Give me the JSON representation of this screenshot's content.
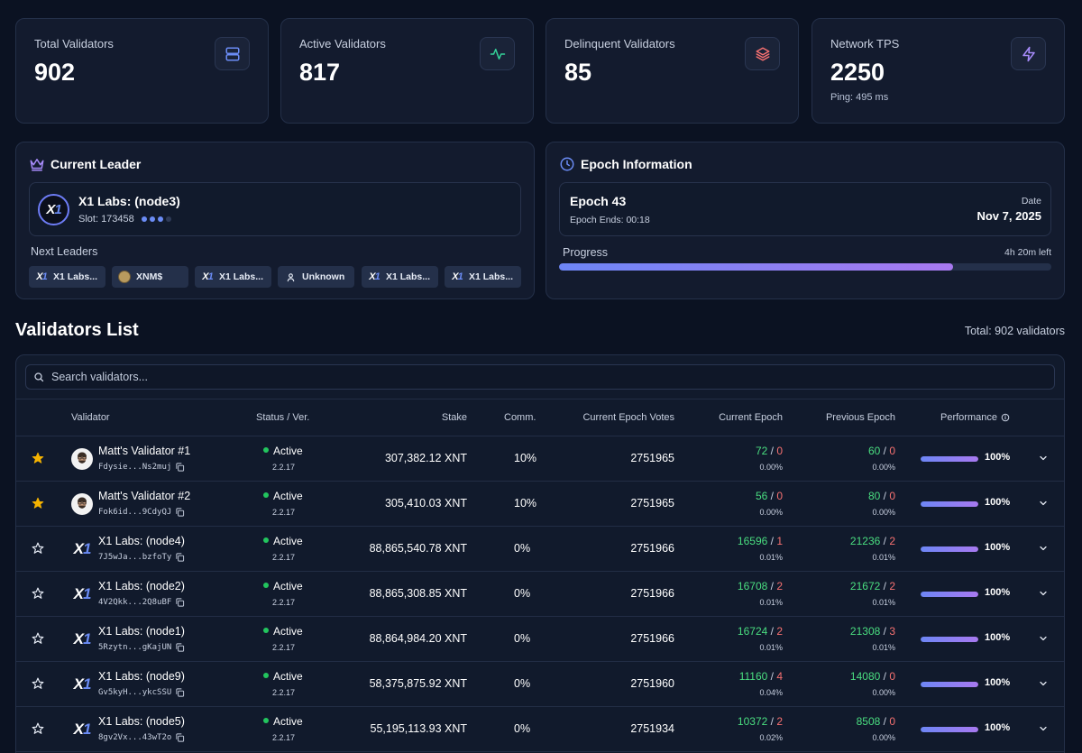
{
  "stats": [
    {
      "label": "Total Validators",
      "value": "902",
      "sub": "",
      "icon": "server-icon",
      "color": "#6b8cf5"
    },
    {
      "label": "Active Validators",
      "value": "817",
      "sub": "",
      "icon": "activity-icon",
      "color": "#34d399"
    },
    {
      "label": "Delinquent Validators",
      "value": "85",
      "sub": "",
      "icon": "layers-icon",
      "color": "#f87171"
    },
    {
      "label": "Network TPS",
      "value": "2250",
      "sub": "Ping: 495 ms",
      "icon": "zap-icon",
      "color": "#a78bfa"
    }
  ],
  "leader": {
    "title": "Current Leader",
    "name": "X1 Labs: (node3)",
    "slot": "Slot: 173458",
    "next_label": "Next Leaders",
    "next": [
      {
        "label": "X1 Labs...",
        "icon": "x1-logo-icon"
      },
      {
        "label": "XNM$",
        "icon": "avatar-icon"
      },
      {
        "label": "X1 Labs...",
        "icon": "x1-logo-icon"
      },
      {
        "label": "Unknown",
        "icon": "user-icon"
      },
      {
        "label": "X1 Labs...",
        "icon": "x1-logo-icon"
      },
      {
        "label": "X1 Labs...",
        "icon": "x1-logo-icon"
      }
    ]
  },
  "epoch": {
    "title": "Epoch Information",
    "name": "Epoch 43",
    "ends": "Epoch Ends: 00:18",
    "date_label": "Date",
    "date": "Nov 7, 2025",
    "progress_label": "Progress",
    "time_left": "4h 20m left",
    "progress": 0.8
  },
  "list": {
    "title": "Validators List",
    "total": "Total: 902 validators",
    "search_placeholder": "Search validators...",
    "columns": {
      "validator": "Validator",
      "status": "Status / Ver.",
      "stake": "Stake",
      "comm": "Comm.",
      "votes": "Current Epoch Votes",
      "current": "Current Epoch",
      "previous": "Previous Epoch",
      "performance": "Performance"
    },
    "rows": [
      {
        "fav": true,
        "avatar": "photo",
        "name": "Matt's Validator #1",
        "addr": "Fdysie...Ns2muj",
        "status": "Active",
        "version": "2.2.17",
        "stake": "307,382.12 XNT",
        "comm": "10%",
        "votes": "2751965",
        "ce_a": "72",
        "ce_b": "0",
        "ce_pct": "0.00%",
        "pe_a": "60",
        "pe_b": "0",
        "pe_pct": "0.00%",
        "perf": "100%",
        "perf_value": 1.0
      },
      {
        "fav": true,
        "avatar": "photo",
        "name": "Matt's Validator #2",
        "addr": "Fok6id...9CdyQJ",
        "status": "Active",
        "version": "2.2.17",
        "stake": "305,410.03 XNT",
        "comm": "10%",
        "votes": "2751965",
        "ce_a": "56",
        "ce_b": "0",
        "ce_pct": "0.00%",
        "pe_a": "80",
        "pe_b": "0",
        "pe_pct": "0.00%",
        "perf": "100%",
        "perf_value": 1.0
      },
      {
        "fav": false,
        "avatar": "x1",
        "name": "X1 Labs: (node4)",
        "addr": "7J5wJa...bzfoTy",
        "status": "Active",
        "version": "2.2.17",
        "stake": "88,865,540.78 XNT",
        "comm": "0%",
        "votes": "2751966",
        "ce_a": "16596",
        "ce_b": "1",
        "ce_pct": "0.01%",
        "pe_a": "21236",
        "pe_b": "2",
        "pe_pct": "0.01%",
        "perf": "100%",
        "perf_value": 1.0
      },
      {
        "fav": false,
        "avatar": "x1",
        "name": "X1 Labs: (node2)",
        "addr": "4V2Qkk...2Q8uBF",
        "status": "Active",
        "version": "2.2.17",
        "stake": "88,865,308.85 XNT",
        "comm": "0%",
        "votes": "2751966",
        "ce_a": "16708",
        "ce_b": "2",
        "ce_pct": "0.01%",
        "pe_a": "21672",
        "pe_b": "2",
        "pe_pct": "0.01%",
        "perf": "100%",
        "perf_value": 1.0
      },
      {
        "fav": false,
        "avatar": "x1",
        "name": "X1 Labs: (node1)",
        "addr": "5Rzytn...gKajUN",
        "status": "Active",
        "version": "2.2.17",
        "stake": "88,864,984.20 XNT",
        "comm": "0%",
        "votes": "2751966",
        "ce_a": "16724",
        "ce_b": "2",
        "ce_pct": "0.01%",
        "pe_a": "21308",
        "pe_b": "3",
        "pe_pct": "0.01%",
        "perf": "100%",
        "perf_value": 1.0
      },
      {
        "fav": false,
        "avatar": "x1",
        "name": "X1 Labs: (node9)",
        "addr": "Gv5kyH...ykcSSU",
        "status": "Active",
        "version": "2.2.17",
        "stake": "58,375,875.92 XNT",
        "comm": "0%",
        "votes": "2751960",
        "ce_a": "11160",
        "ce_b": "4",
        "ce_pct": "0.04%",
        "pe_a": "14080",
        "pe_b": "0",
        "pe_pct": "0.00%",
        "perf": "100%",
        "perf_value": 1.0
      },
      {
        "fav": false,
        "avatar": "x1",
        "name": "X1 Labs: (node5)",
        "addr": "8gv2Vx...43wT2o",
        "status": "Active",
        "version": "2.2.17",
        "stake": "55,195,113.93 XNT",
        "comm": "0%",
        "votes": "2751934",
        "ce_a": "10372",
        "ce_b": "2",
        "ce_pct": "0.02%",
        "pe_a": "8508",
        "pe_b": "0",
        "pe_pct": "0.00%",
        "perf": "100%",
        "perf_value": 1.0
      }
    ]
  }
}
